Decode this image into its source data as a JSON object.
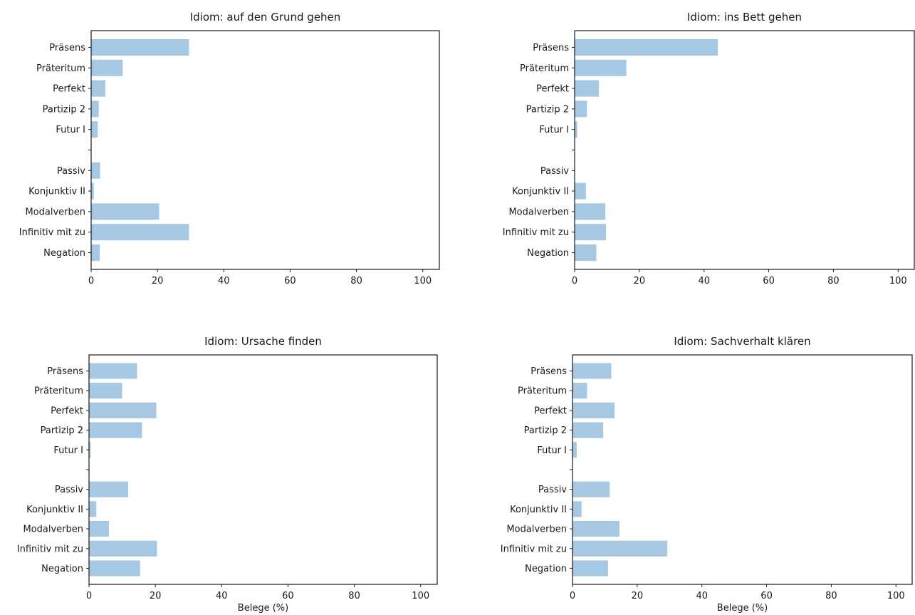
{
  "chart_data": [
    {
      "type": "bar",
      "orientation": "horizontal",
      "title": "Idiom: auf den Grund gehen",
      "categories": [
        "Präsens",
        "Präteritum",
        "Perfekt",
        "Partizip 2",
        "Futur I",
        "",
        "Passiv",
        "Konjunktiv II",
        "Modalverben",
        "Infinitiv mit zu",
        "Negation"
      ],
      "values": [
        29.5,
        9.5,
        4.3,
        2.3,
        2.0,
        null,
        2.7,
        0.8,
        20.5,
        29.5,
        2.6
      ],
      "xlabel": "",
      "xlim": [
        0,
        105
      ],
      "xticks": [
        0,
        20,
        40,
        60,
        80,
        100
      ],
      "color": "#a7c8e3",
      "grid": false
    },
    {
      "type": "bar",
      "orientation": "horizontal",
      "title": "Idiom: ins Bett gehen",
      "categories": [
        "Präsens",
        "Präteritum",
        "Perfekt",
        "Partizip 2",
        "Futur I",
        "",
        "Passiv",
        "Konjunktiv II",
        "Modalverben",
        "Infinitiv mit zu",
        "Negation"
      ],
      "values": [
        44.3,
        16.0,
        7.5,
        3.8,
        0.8,
        null,
        0,
        3.5,
        9.5,
        9.7,
        6.7
      ],
      "xlabel": "",
      "xlim": [
        0,
        105
      ],
      "xticks": [
        0,
        20,
        40,
        60,
        80,
        100
      ],
      "color": "#a7c8e3",
      "grid": false
    },
    {
      "type": "bar",
      "orientation": "horizontal",
      "title": "Idiom: Ursache finden",
      "categories": [
        "Präsens",
        "Präteritum",
        "Perfekt",
        "Partizip 2",
        "Futur I",
        "",
        "Passiv",
        "Konjunktiv II",
        "Modalverben",
        "Infinitiv mit zu",
        "Negation"
      ],
      "values": [
        14.5,
        10.0,
        20.3,
        16.0,
        0.5,
        null,
        11.8,
        2.2,
        6.0,
        20.5,
        15.4
      ],
      "xlabel": "Belege (%)",
      "xlim": [
        0,
        105
      ],
      "xticks": [
        0,
        20,
        40,
        60,
        80,
        100
      ],
      "color": "#a7c8e3",
      "grid": false
    },
    {
      "type": "bar",
      "orientation": "horizontal",
      "title": "Idiom: Sachverhalt klären",
      "categories": [
        "Präsens",
        "Präteritum",
        "Perfekt",
        "Partizip 2",
        "Futur I",
        "",
        "Passiv",
        "Konjunktiv II",
        "Modalverben",
        "Infinitiv mit zu",
        "Negation"
      ],
      "values": [
        12.0,
        4.5,
        13.0,
        9.5,
        1.3,
        null,
        11.5,
        2.8,
        14.5,
        29.3,
        11.0
      ],
      "xlabel": "Belege (%)",
      "xlim": [
        0,
        105
      ],
      "xticks": [
        0,
        20,
        40,
        60,
        80,
        100
      ],
      "color": "#a7c8e3",
      "grid": false
    }
  ]
}
